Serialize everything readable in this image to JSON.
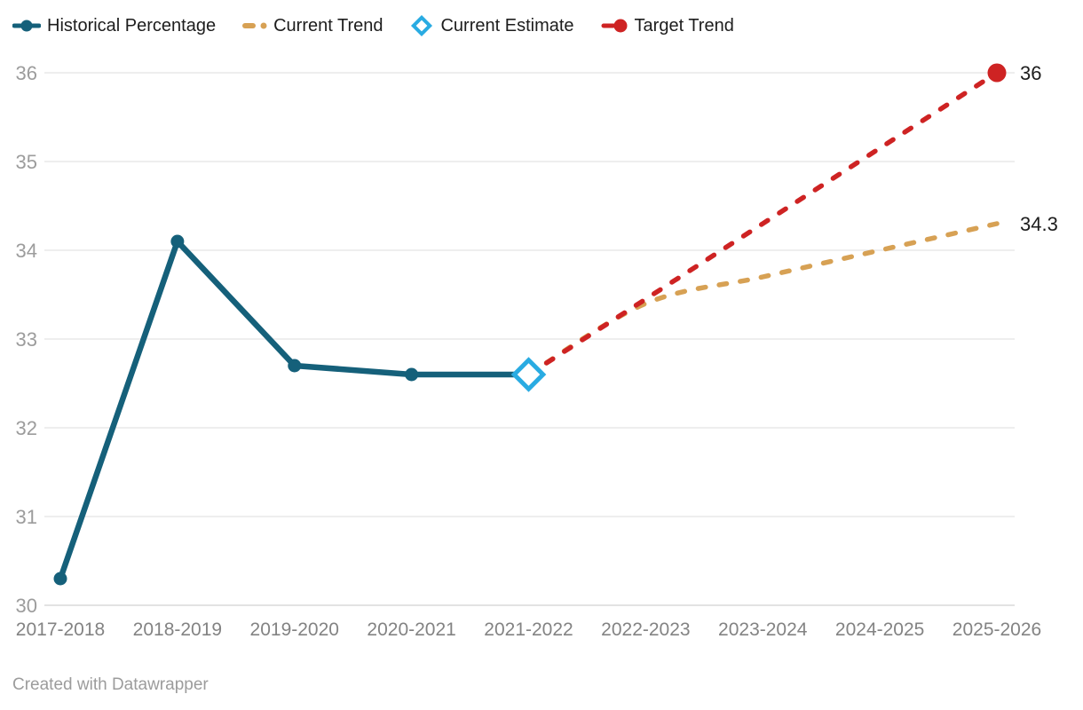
{
  "footer": {
    "credit": "Created with Datawrapper"
  },
  "colors": {
    "grid": "#e9e9e9",
    "grid_baseline": "#d8d8d8",
    "y_tick_label": "#9c9c9c",
    "x_tick_label": "#838383",
    "end_label": "#1d1d1d",
    "legend_text": "#1d1d1d",
    "background": "#ffffff"
  },
  "chart_data": {
    "type": "line",
    "title": "",
    "xlabel": "",
    "ylabel": "",
    "categories": [
      "2017-2018",
      "2018-2019",
      "2019-2020",
      "2020-2021",
      "2021-2022",
      "2022-2023",
      "2023-2024",
      "2024-2025",
      "2025-2026"
    ],
    "ylim": [
      30,
      36
    ],
    "yticks": [
      30,
      31,
      32,
      33,
      34,
      35,
      36
    ],
    "grid": "horizontal",
    "legend_position": "top",
    "series": [
      {
        "name": "Historical Percentage",
        "type": "line",
        "style": "solid",
        "color": "#15607a",
        "marker": "circle",
        "values": [
          30.3,
          34.1,
          32.7,
          32.6,
          32.6
        ]
      },
      {
        "name": "Current Trend",
        "type": "line",
        "style": "dashed",
        "smooth": true,
        "color": "#d7a154",
        "end_label": "34.3",
        "values": [
          null,
          null,
          null,
          null,
          32.6,
          33.4,
          33.7,
          34.0,
          34.3
        ]
      },
      {
        "name": "Current Estimate",
        "type": "point",
        "style": "point",
        "color": "#29abe2",
        "marker": "diamond-open",
        "values": [
          null,
          null,
          null,
          null,
          32.6
        ]
      },
      {
        "name": "Target Trend",
        "type": "line",
        "style": "dashed",
        "color": "#ce2323",
        "end_label": "36",
        "end_marker": "circle",
        "values": [
          null,
          null,
          null,
          null,
          32.6,
          33.45,
          34.3,
          35.15,
          36.0
        ]
      }
    ]
  }
}
